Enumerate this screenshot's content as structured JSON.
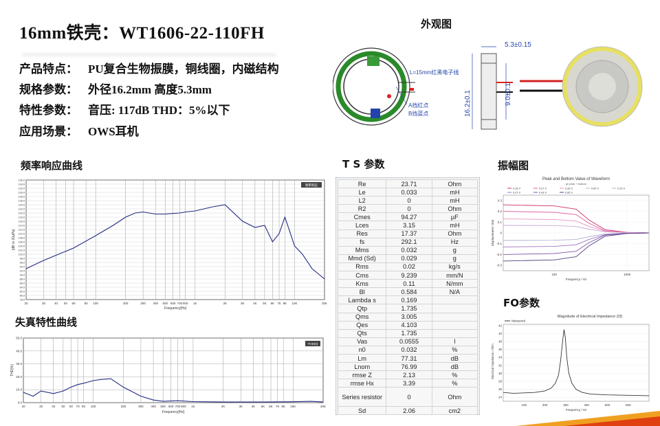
{
  "title": "16mm铁壳：WT1606-22-110FH",
  "specs": [
    {
      "key": "产品特点：",
      "value": "PU复合生物振膜，铜线圈，内磁结构"
    },
    {
      "key": "规格参数：",
      "value": "外径16.2mm   高度5.3mm"
    },
    {
      "key": "特性参数：",
      "value": "音压: 117dB  THD：5%以下"
    },
    {
      "key": "应用场景：",
      "value": "OWS耳机"
    }
  ],
  "sections": {
    "appearance": "外观图",
    "freq": "频率响应曲线",
    "distortion": "失真特性曲线",
    "ts": "T S 参数",
    "amplitude": "振幅图",
    "fo": "FO参数"
  },
  "drawing": {
    "wire_label": "L=15mm红黑电子线",
    "label_a": "A挡红点",
    "label_b": "B挡蓝点",
    "dim_height": "5.3±0.15",
    "dim_outer": "16.2±0.1",
    "dim_inner": "9.0±0.1"
  },
  "ts_params": [
    {
      "name": "Re",
      "value": "23.71",
      "unit": "Ohm"
    },
    {
      "name": "Le",
      "value": "0.033",
      "unit": "mH"
    },
    {
      "name": "L2",
      "value": "0",
      "unit": "mH"
    },
    {
      "name": "R2",
      "value": "0",
      "unit": "Ohm"
    },
    {
      "name": "Cmes",
      "value": "94.27",
      "unit": "µF"
    },
    {
      "name": "Lces",
      "value": "3.15",
      "unit": "mH"
    },
    {
      "name": "Res",
      "value": "17.37",
      "unit": "Ohm"
    },
    {
      "name": "fs",
      "value": "292.1",
      "unit": "Hz"
    },
    {
      "name": "Mms",
      "value": "0.032",
      "unit": "g"
    },
    {
      "name": "Mmd (Sd)",
      "value": "0.029",
      "unit": "g"
    },
    {
      "name": "Rms",
      "value": "0.02",
      "unit": "kg/s"
    },
    {
      "name": "Cms",
      "value": "9.239",
      "unit": "mm/N"
    },
    {
      "name": "Kms",
      "value": "0.11",
      "unit": "N/mm"
    },
    {
      "name": "Bl",
      "value": "0.584",
      "unit": "N/A"
    },
    {
      "name": "Lambda s",
      "value": "0.169",
      "unit": ""
    },
    {
      "name": "Qtp",
      "value": "1.735",
      "unit": ""
    },
    {
      "name": "Qms",
      "value": "3.005",
      "unit": ""
    },
    {
      "name": "Qes",
      "value": "4.103",
      "unit": ""
    },
    {
      "name": "Qts",
      "value": "1.735",
      "unit": ""
    },
    {
      "name": "Vas",
      "value": "0.0555",
      "unit": "l"
    },
    {
      "name": "n0",
      "value": "0.032",
      "unit": "%"
    },
    {
      "name": "Lm",
      "value": "77.31",
      "unit": "dB"
    },
    {
      "name": "Lnom",
      "value": "76.99",
      "unit": "dB"
    },
    {
      "name": "rmse Z",
      "value": "2.13",
      "unit": "%"
    },
    {
      "name": "rmse Hx",
      "value": "3.39",
      "unit": "%"
    },
    {
      "name": "Series resistor",
      "value": "0",
      "unit": "Ohm"
    },
    {
      "name": "Sd",
      "value": "2.06",
      "unit": "cm2"
    }
  ],
  "chart_data": [
    {
      "type": "line",
      "id": "frequency-response",
      "title": "",
      "xlabel": "Frequency[Hz]",
      "ylabel": "[dB re 20µPa]",
      "xscale": "log",
      "xlim": [
        20,
        20000
      ],
      "ylim": [
        78,
        136
      ],
      "xticks": [
        "20",
        "30",
        "40",
        "50",
        "60",
        "80",
        "100",
        "200",
        "300",
        "400",
        "500",
        "600",
        "700",
        "800",
        "1K",
        "2K",
        "3K",
        "4K",
        "5K",
        "6K",
        "7K",
        "8K",
        "10K",
        "20K"
      ],
      "legend": "频率响应",
      "series": [
        {
          "x": [
            20,
            30,
            40,
            60,
            100,
            150,
            200,
            250,
            300,
            400,
            500,
            600,
            700,
            800,
            1000,
            1500,
            2000,
            3000,
            4000,
            5000,
            6000,
            7000,
            8000,
            10000,
            12000,
            15000,
            20000
          ],
          "y": [
            93,
            97,
            99.5,
            103,
            109,
            114,
            118,
            120,
            120.5,
            119.5,
            119.5,
            119.8,
            120,
            120.5,
            121,
            123,
            124,
            116,
            113,
            114,
            106,
            110,
            118,
            104,
            100,
            93,
            88
          ]
        }
      ]
    },
    {
      "type": "line",
      "id": "distortion",
      "title": "",
      "xlabel": "Frequency[Hz]",
      "ylabel": "THD[%]",
      "xscale": "log",
      "xlim": [
        20,
        20000
      ],
      "ylim": [
        0,
        50
      ],
      "yticks": [
        "0.0",
        "10.0",
        "20.0",
        "30.0",
        "40.0",
        "50.0"
      ],
      "legend": "THD(0)",
      "series": [
        {
          "x": [
            20,
            25,
            30,
            40,
            50,
            60,
            70,
            80,
            100,
            120,
            150,
            200,
            300,
            400,
            500,
            700,
            1000,
            2000,
            5000,
            10000,
            15000,
            20000
          ],
          "y": [
            8,
            5,
            9,
            7,
            9,
            12,
            14,
            15,
            17,
            18,
            18.5,
            12,
            5,
            2,
            1,
            1.5,
            0.8,
            0.5,
            0.5,
            0.7,
            1,
            0.5
          ]
        }
      ]
    },
    {
      "type": "line",
      "id": "amplitude",
      "title": "Peak and Bottom Value of Waveform",
      "subtitle": "µf peak + bottom",
      "xlabel": "Frequency / Hz",
      "ylabel": "Displacement / mm",
      "xscale": "log",
      "xlim": [
        20,
        2000
      ],
      "ylim": [
        -0.35,
        0.35
      ],
      "yticks": [
        "-0.3",
        "-0.2",
        "-0.1",
        "0",
        "0.1",
        "0.2",
        "0.3"
      ],
      "xticks": [
        "100",
        "1000"
      ],
      "legend_entries": [
        "0.16 V",
        "0.27 V",
        "0.33 V",
        "0.60 V",
        "0.10 V",
        "0.27 V",
        "0.43 V",
        "0.60 V"
      ],
      "series": [
        {
          "x": [
            20,
            100,
            200,
            300,
            500,
            1000,
            2000
          ],
          "y": [
            0.26,
            0.25,
            0.22,
            0.12,
            0.03,
            0.005,
            0
          ]
        },
        {
          "x": [
            20,
            100,
            200,
            300,
            500,
            1000,
            2000
          ],
          "y": [
            0.2,
            0.19,
            0.17,
            0.09,
            0.02,
            0.004,
            0
          ]
        },
        {
          "x": [
            20,
            100,
            200,
            300,
            500,
            1000,
            2000
          ],
          "y": [
            0.13,
            0.125,
            0.11,
            0.06,
            0.015,
            0.003,
            0
          ]
        },
        {
          "x": [
            20,
            100,
            200,
            300,
            500,
            1000,
            2000
          ],
          "y": [
            0.07,
            0.068,
            0.06,
            0.035,
            0.01,
            0.002,
            0
          ]
        },
        {
          "x": [
            20,
            100,
            200,
            300,
            500,
            1000,
            2000
          ],
          "y": [
            -0.07,
            -0.068,
            -0.06,
            -0.035,
            -0.01,
            -0.002,
            0
          ]
        },
        {
          "x": [
            20,
            100,
            200,
            300,
            500,
            1000,
            2000
          ],
          "y": [
            -0.13,
            -0.125,
            -0.11,
            -0.06,
            -0.015,
            -0.003,
            0
          ]
        },
        {
          "x": [
            20,
            100,
            200,
            300,
            500,
            1000,
            2000
          ],
          "y": [
            -0.2,
            -0.19,
            -0.17,
            -0.09,
            -0.02,
            -0.004,
            0
          ]
        },
        {
          "x": [
            20,
            100,
            200,
            300,
            500,
            1000,
            2000
          ],
          "y": [
            -0.26,
            -0.25,
            -0.22,
            -0.12,
            -0.03,
            -0.005,
            0
          ]
        }
      ],
      "colors": [
        "#d0306a",
        "#e0569a",
        "#e890c0",
        "#c8a8d8",
        "#b0b0d0",
        "#a070c0",
        "#8050a8",
        "#504080"
      ]
    },
    {
      "type": "line",
      "id": "impedance",
      "title": "Magnitude of Electrical Impedance Z(f)",
      "xlabel": "Frequency / Hz",
      "ylabel": "Electrical Impedance / Ohm",
      "legend": "Measured",
      "xlim": [
        0,
        700
      ],
      "ylim": [
        23,
        43
      ],
      "yticks": [
        "24",
        "26",
        "28",
        "30",
        "32",
        "34",
        "36",
        "38",
        "40",
        "42"
      ],
      "series": [
        {
          "x": [
            0,
            50,
            100,
            150,
            200,
            230,
            250,
            265,
            275,
            285,
            292,
            298,
            305,
            315,
            330,
            350,
            380,
            420,
            500,
            600,
            700
          ],
          "y": [
            25.2,
            25,
            25.1,
            25.2,
            25.6,
            26.3,
            27.5,
            29.5,
            33,
            38,
            41,
            39,
            34,
            30,
            27.5,
            26,
            25.2,
            24.8,
            24.6,
            24.5,
            24.4
          ]
        }
      ]
    }
  ]
}
